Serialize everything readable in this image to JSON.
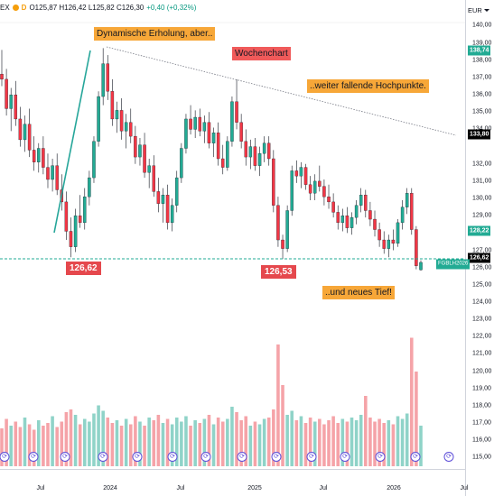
{
  "header": {
    "ticker_fragment": "EX",
    "d_badge": "D",
    "ohlc": "O125,87 H126,42 L125,82 C126,30",
    "change": "+0,40 (+0,32%)"
  },
  "currency": "EUR",
  "annotations": [
    {
      "text": "Dynamische Erholung, aber..",
      "style": "orange"
    },
    {
      "text": "Wochenchart",
      "style": "red"
    },
    {
      "text": "..weiter fallende Hochpunkte.",
      "style": "orange"
    },
    {
      "text": "..und neues Tief!",
      "style": "orange"
    }
  ],
  "price_labels": [
    "126,62",
    "126,53"
  ],
  "price_badges": {
    "top": "138,74",
    "trend": "133,80",
    "mid": "128,22",
    "support": "126,62",
    "symbol": "FGBLH2026"
  },
  "chart_data": {
    "type": "candlestick",
    "y_axis": {
      "ticks": [
        "140,00",
        "139,00",
        "138,00",
        "137,00",
        "136,00",
        "135,00",
        "134,00",
        "132,00",
        "131,00",
        "130,00",
        "129,00",
        "127,00",
        "126,00",
        "125,00",
        "124,00",
        "123,00",
        "122,00",
        "121,00",
        "120,00",
        "119,00",
        "118,00",
        "117,00",
        "116,00",
        "115,00"
      ],
      "range": [
        114.5,
        140.6
      ]
    },
    "x_axis": {
      "ticks": [
        "Jul",
        "2024",
        "Jul",
        "2025",
        "Jul",
        "2026",
        "Jul"
      ]
    },
    "candles": [
      {
        "o": 137.2,
        "h": 138.6,
        "l": 136.5,
        "c": 136.9
      },
      {
        "o": 136.9,
        "h": 137.5,
        "l": 134.8,
        "c": 135.2
      },
      {
        "o": 135.2,
        "h": 136.4,
        "l": 133.9,
        "c": 136.0
      },
      {
        "o": 136.0,
        "h": 136.8,
        "l": 134.2,
        "c": 134.6
      },
      {
        "o": 134.6,
        "h": 135.3,
        "l": 133.0,
        "c": 133.4
      },
      {
        "o": 133.4,
        "h": 134.8,
        "l": 132.7,
        "c": 134.3
      },
      {
        "o": 134.3,
        "h": 135.2,
        "l": 132.4,
        "c": 132.8
      },
      {
        "o": 132.8,
        "h": 133.6,
        "l": 131.6,
        "c": 132.1
      },
      {
        "o": 132.1,
        "h": 133.2,
        "l": 131.5,
        "c": 132.9
      },
      {
        "o": 132.9,
        "h": 133.6,
        "l": 131.4,
        "c": 131.8
      },
      {
        "o": 131.8,
        "h": 132.6,
        "l": 130.6,
        "c": 131.1
      },
      {
        "o": 131.1,
        "h": 132.3,
        "l": 130.4,
        "c": 131.9
      },
      {
        "o": 131.9,
        "h": 132.6,
        "l": 130.2,
        "c": 130.5
      },
      {
        "o": 130.5,
        "h": 131.4,
        "l": 129.3,
        "c": 129.8
      },
      {
        "o": 129.8,
        "h": 130.4,
        "l": 127.6,
        "c": 128.1
      },
      {
        "o": 128.1,
        "h": 128.9,
        "l": 126.6,
        "c": 127.2
      },
      {
        "o": 127.2,
        "h": 129.4,
        "l": 126.9,
        "c": 129.0
      },
      {
        "o": 129.0,
        "h": 130.2,
        "l": 128.3,
        "c": 128.6
      },
      {
        "o": 128.6,
        "h": 130.6,
        "l": 128.2,
        "c": 130.1
      },
      {
        "o": 130.1,
        "h": 131.6,
        "l": 129.6,
        "c": 131.2
      },
      {
        "o": 131.2,
        "h": 133.6,
        "l": 130.9,
        "c": 133.3
      },
      {
        "o": 133.3,
        "h": 136.2,
        "l": 133.0,
        "c": 135.9
      },
      {
        "o": 135.9,
        "h": 138.7,
        "l": 135.4,
        "c": 137.8
      },
      {
        "o": 137.8,
        "h": 138.3,
        "l": 135.7,
        "c": 136.2
      },
      {
        "o": 136.2,
        "h": 136.9,
        "l": 134.2,
        "c": 134.6
      },
      {
        "o": 134.6,
        "h": 135.6,
        "l": 133.8,
        "c": 135.1
      },
      {
        "o": 135.1,
        "h": 135.8,
        "l": 133.4,
        "c": 133.9
      },
      {
        "o": 133.9,
        "h": 134.9,
        "l": 132.9,
        "c": 134.4
      },
      {
        "o": 134.4,
        "h": 135.2,
        "l": 133.2,
        "c": 133.6
      },
      {
        "o": 133.6,
        "h": 134.2,
        "l": 132.0,
        "c": 132.4
      },
      {
        "o": 132.4,
        "h": 133.5,
        "l": 131.9,
        "c": 133.1
      },
      {
        "o": 133.1,
        "h": 133.8,
        "l": 131.2,
        "c": 131.5
      },
      {
        "o": 131.5,
        "h": 132.3,
        "l": 130.6,
        "c": 131.9
      },
      {
        "o": 131.9,
        "h": 132.5,
        "l": 130.1,
        "c": 130.4
      },
      {
        "o": 130.4,
        "h": 131.2,
        "l": 129.2,
        "c": 129.7
      },
      {
        "o": 129.7,
        "h": 130.6,
        "l": 128.6,
        "c": 130.2
      },
      {
        "o": 130.2,
        "h": 130.8,
        "l": 128.2,
        "c": 128.6
      },
      {
        "o": 128.6,
        "h": 130.0,
        "l": 128.1,
        "c": 129.6
      },
      {
        "o": 129.6,
        "h": 131.6,
        "l": 129.2,
        "c": 131.2
      },
      {
        "o": 131.2,
        "h": 133.2,
        "l": 130.9,
        "c": 132.9
      },
      {
        "o": 132.9,
        "h": 134.9,
        "l": 132.6,
        "c": 134.6
      },
      {
        "o": 134.6,
        "h": 135.4,
        "l": 133.7,
        "c": 134.0
      },
      {
        "o": 134.0,
        "h": 135.1,
        "l": 133.5,
        "c": 134.7
      },
      {
        "o": 134.7,
        "h": 135.2,
        "l": 133.6,
        "c": 133.9
      },
      {
        "o": 133.9,
        "h": 134.8,
        "l": 133.2,
        "c": 134.4
      },
      {
        "o": 134.4,
        "h": 135.0,
        "l": 132.9,
        "c": 133.2
      },
      {
        "o": 133.2,
        "h": 134.1,
        "l": 132.4,
        "c": 133.8
      },
      {
        "o": 133.8,
        "h": 134.4,
        "l": 131.9,
        "c": 132.3
      },
      {
        "o": 132.3,
        "h": 133.1,
        "l": 131.4,
        "c": 131.8
      },
      {
        "o": 131.8,
        "h": 133.6,
        "l": 131.6,
        "c": 133.3
      },
      {
        "o": 133.3,
        "h": 135.9,
        "l": 133.0,
        "c": 135.6
      },
      {
        "o": 135.6,
        "h": 136.9,
        "l": 134.0,
        "c": 134.4
      },
      {
        "o": 134.4,
        "h": 134.9,
        "l": 132.9,
        "c": 133.3
      },
      {
        "o": 133.3,
        "h": 134.0,
        "l": 131.9,
        "c": 132.4
      },
      {
        "o": 132.4,
        "h": 133.4,
        "l": 131.7,
        "c": 133.0
      },
      {
        "o": 133.0,
        "h": 133.5,
        "l": 131.6,
        "c": 131.9
      },
      {
        "o": 131.9,
        "h": 133.0,
        "l": 131.3,
        "c": 132.6
      },
      {
        "o": 132.6,
        "h": 133.6,
        "l": 132.1,
        "c": 133.2
      },
      {
        "o": 133.2,
        "h": 133.6,
        "l": 131.9,
        "c": 132.3
      },
      {
        "o": 132.3,
        "h": 132.8,
        "l": 129.2,
        "c": 129.6
      },
      {
        "o": 129.6,
        "h": 130.1,
        "l": 127.2,
        "c": 127.6
      },
      {
        "o": 127.6,
        "h": 127.9,
        "l": 126.5,
        "c": 127.1
      },
      {
        "o": 127.1,
        "h": 129.6,
        "l": 126.9,
        "c": 129.3
      },
      {
        "o": 129.3,
        "h": 131.9,
        "l": 129.0,
        "c": 131.6
      },
      {
        "o": 131.6,
        "h": 132.2,
        "l": 130.9,
        "c": 131.3
      },
      {
        "o": 131.3,
        "h": 132.1,
        "l": 130.6,
        "c": 131.8
      },
      {
        "o": 131.8,
        "h": 132.0,
        "l": 130.5,
        "c": 130.8
      },
      {
        "o": 130.8,
        "h": 131.3,
        "l": 129.9,
        "c": 130.3
      },
      {
        "o": 130.3,
        "h": 131.4,
        "l": 129.9,
        "c": 131.0
      },
      {
        "o": 131.0,
        "h": 131.9,
        "l": 130.4,
        "c": 130.7
      },
      {
        "o": 130.7,
        "h": 131.1,
        "l": 129.6,
        "c": 130.1
      },
      {
        "o": 130.1,
        "h": 130.8,
        "l": 129.4,
        "c": 129.8
      },
      {
        "o": 129.8,
        "h": 130.3,
        "l": 128.9,
        "c": 129.2
      },
      {
        "o": 129.2,
        "h": 129.6,
        "l": 128.2,
        "c": 128.6
      },
      {
        "o": 128.6,
        "h": 129.4,
        "l": 128.1,
        "c": 129.0
      },
      {
        "o": 129.0,
        "h": 129.5,
        "l": 128.0,
        "c": 128.3
      },
      {
        "o": 128.3,
        "h": 129.2,
        "l": 127.9,
        "c": 128.9
      },
      {
        "o": 128.9,
        "h": 129.9,
        "l": 128.5,
        "c": 129.6
      },
      {
        "o": 129.6,
        "h": 130.6,
        "l": 129.2,
        "c": 130.2
      },
      {
        "o": 130.2,
        "h": 130.5,
        "l": 128.9,
        "c": 129.3
      },
      {
        "o": 129.3,
        "h": 129.8,
        "l": 128.4,
        "c": 128.8
      },
      {
        "o": 128.8,
        "h": 129.3,
        "l": 127.8,
        "c": 128.2
      },
      {
        "o": 128.2,
        "h": 128.6,
        "l": 127.2,
        "c": 127.6
      },
      {
        "o": 127.6,
        "h": 128.1,
        "l": 126.8,
        "c": 127.1
      },
      {
        "o": 127.1,
        "h": 127.9,
        "l": 126.6,
        "c": 127.6
      },
      {
        "o": 127.6,
        "h": 128.2,
        "l": 127.0,
        "c": 127.4
      },
      {
        "o": 127.4,
        "h": 128.8,
        "l": 127.2,
        "c": 128.6
      },
      {
        "o": 128.6,
        "h": 129.9,
        "l": 128.2,
        "c": 129.5
      },
      {
        "o": 129.5,
        "h": 130.6,
        "l": 129.1,
        "c": 130.3
      },
      {
        "o": 130.3,
        "h": 130.6,
        "l": 127.9,
        "c": 128.2
      },
      {
        "o": 128.2,
        "h": 128.4,
        "l": 125.9,
        "c": 126.1
      },
      {
        "o": 125.87,
        "h": 126.42,
        "l": 125.82,
        "c": 126.3
      }
    ],
    "volume": [
      {
        "v": 0.28,
        "up": false
      },
      {
        "v": 0.35,
        "up": false
      },
      {
        "v": 0.3,
        "up": true
      },
      {
        "v": 0.33,
        "up": false
      },
      {
        "v": 0.29,
        "up": false
      },
      {
        "v": 0.36,
        "up": true
      },
      {
        "v": 0.31,
        "up": false
      },
      {
        "v": 0.27,
        "up": false
      },
      {
        "v": 0.34,
        "up": true
      },
      {
        "v": 0.3,
        "up": false
      },
      {
        "v": 0.32,
        "up": false
      },
      {
        "v": 0.37,
        "up": true
      },
      {
        "v": 0.29,
        "up": false
      },
      {
        "v": 0.33,
        "up": false
      },
      {
        "v": 0.4,
        "up": false
      },
      {
        "v": 0.42,
        "up": false
      },
      {
        "v": 0.38,
        "up": true
      },
      {
        "v": 0.31,
        "up": false
      },
      {
        "v": 0.35,
        "up": true
      },
      {
        "v": 0.33,
        "up": true
      },
      {
        "v": 0.39,
        "up": true
      },
      {
        "v": 0.45,
        "up": true
      },
      {
        "v": 0.41,
        "up": true
      },
      {
        "v": 0.36,
        "up": false
      },
      {
        "v": 0.32,
        "up": false
      },
      {
        "v": 0.34,
        "up": true
      },
      {
        "v": 0.3,
        "up": false
      },
      {
        "v": 0.35,
        "up": true
      },
      {
        "v": 0.31,
        "up": false
      },
      {
        "v": 0.37,
        "up": false
      },
      {
        "v": 0.33,
        "up": true
      },
      {
        "v": 0.3,
        "up": false
      },
      {
        "v": 0.36,
        "up": true
      },
      {
        "v": 0.34,
        "up": false
      },
      {
        "v": 0.38,
        "up": false
      },
      {
        "v": 0.32,
        "up": true
      },
      {
        "v": 0.35,
        "up": false
      },
      {
        "v": 0.31,
        "up": true
      },
      {
        "v": 0.36,
        "up": true
      },
      {
        "v": 0.33,
        "up": true
      },
      {
        "v": 0.37,
        "up": true
      },
      {
        "v": 0.3,
        "up": false
      },
      {
        "v": 0.34,
        "up": true
      },
      {
        "v": 0.32,
        "up": false
      },
      {
        "v": 0.35,
        "up": true
      },
      {
        "v": 0.38,
        "up": false
      },
      {
        "v": 0.31,
        "up": true
      },
      {
        "v": 0.36,
        "up": false
      },
      {
        "v": 0.33,
        "up": false
      },
      {
        "v": 0.35,
        "up": true
      },
      {
        "v": 0.44,
        "up": true
      },
      {
        "v": 0.4,
        "up": false
      },
      {
        "v": 0.34,
        "up": false
      },
      {
        "v": 0.37,
        "up": false
      },
      {
        "v": 0.3,
        "up": true
      },
      {
        "v": 0.33,
        "up": false
      },
      {
        "v": 0.31,
        "up": true
      },
      {
        "v": 0.35,
        "up": true
      },
      {
        "v": 0.36,
        "up": false
      },
      {
        "v": 0.42,
        "up": false
      },
      {
        "v": 0.9,
        "up": false
      },
      {
        "v": 0.6,
        "up": false
      },
      {
        "v": 0.38,
        "up": true
      },
      {
        "v": 0.41,
        "up": true
      },
      {
        "v": 0.34,
        "up": false
      },
      {
        "v": 0.37,
        "up": true
      },
      {
        "v": 0.32,
        "up": false
      },
      {
        "v": 0.36,
        "up": false
      },
      {
        "v": 0.33,
        "up": true
      },
      {
        "v": 0.35,
        "up": false
      },
      {
        "v": 0.31,
        "up": false
      },
      {
        "v": 0.34,
        "up": false
      },
      {
        "v": 0.37,
        "up": false
      },
      {
        "v": 0.32,
        "up": false
      },
      {
        "v": 0.35,
        "up": true
      },
      {
        "v": 0.33,
        "up": false
      },
      {
        "v": 0.36,
        "up": true
      },
      {
        "v": 0.34,
        "up": true
      },
      {
        "v": 0.38,
        "up": true
      },
      {
        "v": 0.52,
        "up": false
      },
      {
        "v": 0.36,
        "up": false
      },
      {
        "v": 0.33,
        "up": false
      },
      {
        "v": 0.35,
        "up": false
      },
      {
        "v": 0.32,
        "up": false
      },
      {
        "v": 0.34,
        "up": true
      },
      {
        "v": 0.31,
        "up": false
      },
      {
        "v": 0.37,
        "up": true
      },
      {
        "v": 0.35,
        "up": true
      },
      {
        "v": 0.39,
        "up": true
      },
      {
        "v": 0.95,
        "up": false
      },
      {
        "v": 0.7,
        "up": false
      },
      {
        "v": 0.3,
        "up": true
      }
    ]
  }
}
